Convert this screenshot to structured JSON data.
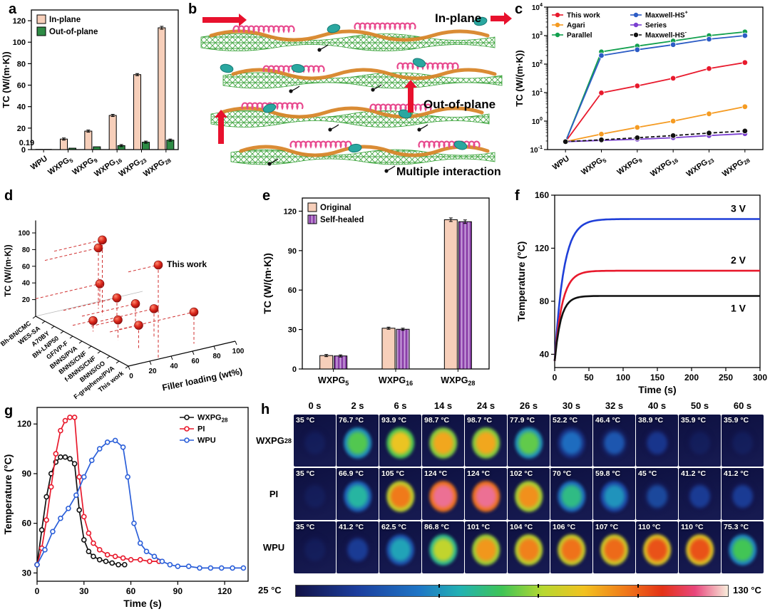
{
  "panel_labels": {
    "a": "a",
    "b": "b",
    "c": "c",
    "d": "d",
    "e": "e",
    "f": "f",
    "g": "g",
    "h": "h"
  },
  "illustration_b": {
    "labels": {
      "in_plane": "In-plane",
      "out_of_plane": "Out-of-plane",
      "multiple_interaction": "Multiple interaction"
    }
  },
  "chart_data": [
    {
      "id": "a",
      "type": "bar",
      "ylabel": "TC (W/(m·K))",
      "categories": [
        "WPU",
        "WXPG_5",
        "WXPG_9",
        "WXPG_16",
        "WXPG_23",
        "WXPG_28"
      ],
      "series": [
        {
          "name": "In-plane",
          "color": "#f7cfba",
          "values": [
            0.19,
            9.8,
            17.2,
            31.8,
            69.8,
            113.4
          ]
        },
        {
          "name": "Out-of-plane",
          "color": "#2e8b45",
          "values": [
            0.19,
            1.3,
            2.6,
            3.7,
            6.9,
            8.8
          ]
        }
      ],
      "annotation": "0.19",
      "ylim": [
        0,
        130
      ],
      "yticks": [
        0,
        20,
        40,
        60,
        80,
        100,
        120
      ],
      "legend_pos": "top-left"
    },
    {
      "id": "c",
      "type": "line",
      "yscale": "log",
      "ylabel": "TC (W/(m·K))",
      "categories": [
        "WPU",
        "WXPG_5",
        "WXPG_9",
        "WXPG_16",
        "WXPG_23",
        "WXPG_28"
      ],
      "ylim_log": [
        -1,
        4
      ],
      "series": [
        {
          "name": "This work",
          "color": "#e8192c",
          "values": [
            0.19,
            9.8,
            17.2,
            31.8,
            69.8,
            113.4
          ]
        },
        {
          "name": "Agari",
          "color": "#f59b22",
          "values": [
            0.19,
            0.35,
            0.6,
            1.0,
            1.8,
            3.2
          ]
        },
        {
          "name": "Parallel",
          "color": "#12a04e",
          "values": [
            0.19,
            270,
            430,
            650,
            1000,
            1350
          ]
        },
        {
          "name": "Maxwell-HS^+",
          "color": "#2c5cc5",
          "values": [
            0.19,
            200,
            320,
            480,
            750,
            1000
          ]
        },
        {
          "name": "Series",
          "color": "#7a3fd0",
          "values": [
            0.19,
            0.21,
            0.23,
            0.26,
            0.31,
            0.36
          ]
        },
        {
          "name": "Maxwell-HS^-",
          "color": "#111111",
          "dash": true,
          "values": [
            0.19,
            0.22,
            0.26,
            0.31,
            0.38,
            0.45
          ]
        }
      ]
    },
    {
      "id": "d",
      "type": "scatter3d",
      "zlabel": "TC (W/(m·K))",
      "xlabel": "Filler loading (wt%)",
      "annotation": "This work",
      "zticks": [
        20,
        40,
        60,
        80,
        100
      ],
      "xticks": [
        0,
        20,
        40,
        60,
        80,
        100
      ],
      "point_color": "#cc1f1f",
      "materials": [
        "Bh-BN/CMC",
        "WES-SA",
        "A70BY",
        "BN-LNP50",
        "GF/VP-F",
        "BNNS/PVA",
        "BNNS/CNF",
        "f-BNNS/CNF",
        "BNNS/GO",
        "F-graphene/PVA",
        "This work"
      ],
      "points": [
        {
          "material": "Bh-BN/CMC",
          "filler": 60,
          "tc": 21
        },
        {
          "material": "WES-SA",
          "filler": 50,
          "tc": 73
        },
        {
          "material": "A70BY",
          "filler": 45,
          "tc": 90
        },
        {
          "material": "BN-LNP50",
          "filler": 50,
          "tc": 25
        },
        {
          "material": "GF/VP-F",
          "filler": 19,
          "tc": 13
        },
        {
          "material": "BNNS/PVA",
          "filler": 50,
          "tc": 30
        },
        {
          "material": "BNNS/CNF",
          "filler": 25,
          "tc": 24
        },
        {
          "material": "f-BNNS/CNF",
          "filler": 50,
          "tc": 36
        },
        {
          "material": "BNNS/GO",
          "filler": 27,
          "tc": 29
        },
        {
          "material": "F-graphene/PVA",
          "filler": 70,
          "tc": 38
        },
        {
          "material": "This work",
          "filler": 28,
          "tc": 113
        }
      ]
    },
    {
      "id": "e",
      "type": "bar",
      "ylabel": "TC (W/(m·K))",
      "categories": [
        "WXPG_5",
        "WXPG_16",
        "WXPG_28"
      ],
      "series": [
        {
          "name": "Original",
          "color": "#f7cfba",
          "values": [
            10.2,
            31.0,
            113.5
          ]
        },
        {
          "name": "Self-healed",
          "color": "#8a3fa8",
          "stripe": "#c9a0dc",
          "values": [
            9.9,
            30.2,
            112.0
          ]
        }
      ],
      "ylim": [
        0,
        130
      ],
      "yticks": [
        0,
        30,
        60,
        90,
        120
      ],
      "legend_pos": "top-left"
    },
    {
      "id": "f",
      "type": "line",
      "xlabel": "Time (s)",
      "ylabel": "Temperature (°C)",
      "xlim": [
        0,
        300
      ],
      "xticks": [
        0,
        50,
        100,
        150,
        200,
        250,
        300
      ],
      "ylim": [
        30,
        160
      ],
      "yticks": [
        40,
        80,
        120,
        160
      ],
      "series": [
        {
          "name": "3 V",
          "color": "#1f3fd8",
          "start": 35,
          "plateau": 142,
          "tau": 13
        },
        {
          "name": "2 V",
          "color": "#e8192c",
          "start": 35,
          "plateau": 103,
          "tau": 11
        },
        {
          "name": "1 V",
          "color": "#111111",
          "start": 35,
          "plateau": 84,
          "tau": 9
        }
      ]
    },
    {
      "id": "g",
      "type": "line",
      "xlabel": "Time (s)",
      "ylabel": "Temperature (°C)",
      "xlim": [
        0,
        135
      ],
      "xticks": [
        0,
        30,
        60,
        90,
        120
      ],
      "ylim": [
        25,
        130
      ],
      "yticks": [
        30,
        60,
        90,
        120
      ],
      "series": [
        {
          "name": "WXPG_28",
          "color": "#111111",
          "points": [
            [
              0,
              35
            ],
            [
              3,
              56
            ],
            [
              6,
              76
            ],
            [
              9,
              90
            ],
            [
              12,
              97
            ],
            [
              15,
              100
            ],
            [
              18,
              100
            ],
            [
              21,
              99
            ],
            [
              24,
              96
            ],
            [
              27,
              68
            ],
            [
              30,
              50
            ],
            [
              33,
              43
            ],
            [
              36,
              40
            ],
            [
              40,
              38
            ],
            [
              44,
              37
            ],
            [
              48,
              36
            ],
            [
              52,
              35
            ],
            [
              56,
              35
            ]
          ]
        },
        {
          "name": "PI",
          "color": "#e8192c",
          "points": [
            [
              0,
              35
            ],
            [
              3,
              45
            ],
            [
              6,
              62
            ],
            [
              9,
              82
            ],
            [
              12,
              102
            ],
            [
              15,
              116
            ],
            [
              18,
              122
            ],
            [
              21,
              124
            ],
            [
              24,
              124
            ],
            [
              27,
              88
            ],
            [
              30,
              64
            ],
            [
              33,
              54
            ],
            [
              36,
              48
            ],
            [
              40,
              44
            ],
            [
              45,
              41
            ],
            [
              50,
              40
            ],
            [
              55,
              39
            ],
            [
              60,
              38
            ],
            [
              66,
              38
            ],
            [
              72,
              37
            ],
            [
              78,
              37
            ]
          ]
        },
        {
          "name": "WPU",
          "color": "#2b5fd9",
          "points": [
            [
              0,
              35
            ],
            [
              5,
              44
            ],
            [
              10,
              55
            ],
            [
              15,
              63
            ],
            [
              20,
              69
            ],
            [
              25,
              77
            ],
            [
              30,
              88
            ],
            [
              35,
              98
            ],
            [
              40,
              105
            ],
            [
              45,
              109
            ],
            [
              50,
              110
            ],
            [
              55,
              106
            ],
            [
              58,
              88
            ],
            [
              62,
              60
            ],
            [
              66,
              48
            ],
            [
              70,
              43
            ],
            [
              75,
              40
            ],
            [
              80,
              37
            ],
            [
              85,
              35
            ],
            [
              90,
              34
            ],
            [
              97,
              34
            ],
            [
              104,
              33
            ],
            [
              111,
              33
            ],
            [
              118,
              33
            ],
            [
              125,
              33
            ],
            [
              132,
              33
            ]
          ]
        }
      ]
    },
    {
      "id": "h",
      "type": "thermal-grid",
      "times": [
        "0 s",
        "2 s",
        "6 s",
        "14 s",
        "24 s",
        "26 s",
        "30 s",
        "32 s",
        "40 s",
        "50 s",
        "60 s"
      ],
      "rows": [
        {
          "label": "WXPG_28",
          "temps": [
            "35 °C",
            "76.7 °C",
            "93.9 °C",
            "98.7 °C",
            "98.7 °C",
            "77.9 °C",
            "52.2 °C",
            "46.4 °C",
            "38.9 °C",
            "35.9 °C",
            "35.9 °C"
          ],
          "values": [
            35,
            76.7,
            93.9,
            98.7,
            98.7,
            77.9,
            52.2,
            46.4,
            38.9,
            35.9,
            35.9
          ]
        },
        {
          "label": "PI",
          "temps": [
            "35 °C",
            "66.9 °C",
            "105 °C",
            "124 °C",
            "124 °C",
            "102 °C",
            "70 °C",
            "59.8 °C",
            "45 °C",
            "41.2 °C",
            "41.2 °C"
          ],
          "values": [
            35,
            66.9,
            105,
            124,
            124,
            102,
            70,
            59.8,
            45,
            41.2,
            41.2
          ]
        },
        {
          "label": "WPU",
          "temps": [
            "35 °C",
            "41.2 °C",
            "62.5 °C",
            "86.8 °C",
            "101 °C",
            "104 °C",
            "106 °C",
            "107 °C",
            "110 °C",
            "110 °C",
            "75.3 °C"
          ],
          "values": [
            35,
            41.2,
            62.5,
            86.8,
            101,
            104,
            106,
            107,
            110,
            110,
            75.3
          ]
        }
      ],
      "colorbar": {
        "min_label": "25 °C",
        "max_label": "130 °C",
        "min": 25,
        "max": 130
      }
    }
  ]
}
